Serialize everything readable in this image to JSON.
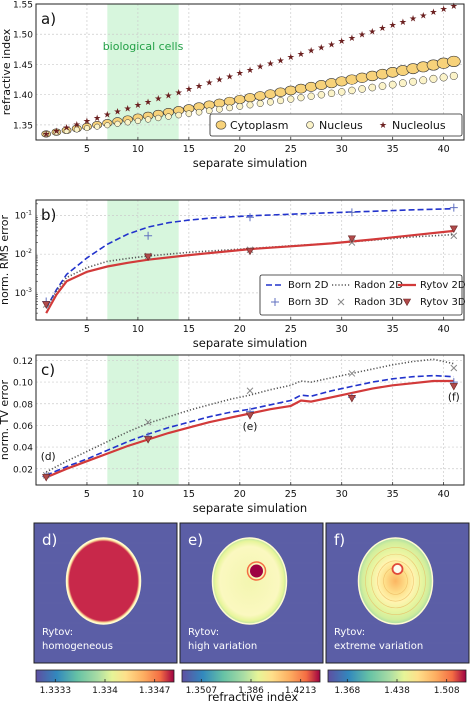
{
  "colors": {
    "born": "#2233cc",
    "radon": "#555555",
    "rytov": "#d23a3a",
    "rytov3d": "#b04a4a",
    "highlight": "#c9f3d2",
    "cytoplasm": "#f7d27a",
    "nucleus": "#fbf3c8",
    "nucleolus": "#6b2020",
    "map_bg": "#5b5ea6"
  },
  "chart_data": [
    {
      "id": "a",
      "type": "scatter",
      "panel_label": "a)",
      "xlabel": "separate simulation",
      "ylabel": "refractive index",
      "xlim": [
        0,
        42
      ],
      "ylim": [
        1.325,
        1.55
      ],
      "xticks": [
        5,
        10,
        15,
        20,
        25,
        30,
        35,
        40
      ],
      "yticks": [
        1.35,
        1.4,
        1.45,
        1.5,
        1.55
      ],
      "ytick_labels": [
        "1.35",
        "1.40",
        "1.45",
        "1.50",
        "1.55"
      ],
      "grid": true,
      "legend_position": "bottom-right",
      "highlight_x": [
        7,
        14
      ],
      "highlight_label": "biological cells",
      "x": [
        1,
        2,
        3,
        4,
        5,
        6,
        7,
        8,
        9,
        10,
        11,
        12,
        13,
        14,
        15,
        16,
        17,
        18,
        19,
        20,
        21,
        22,
        23,
        24,
        25,
        26,
        27,
        28,
        29,
        30,
        31,
        32,
        33,
        34,
        35,
        36,
        37,
        38,
        39,
        40,
        41
      ],
      "series": [
        {
          "name": "Cytoplasm",
          "start": 1.335,
          "step": 0.003
        },
        {
          "name": "Nucleus",
          "start": 1.335,
          "step": 0.0024
        },
        {
          "name": "Nucleolus",
          "start": 1.335,
          "step": 0.0053
        }
      ]
    },
    {
      "id": "b",
      "type": "line",
      "panel_label": "b)",
      "xlabel": "separate simulation",
      "ylabel": "norm. RMS error",
      "log_y": true,
      "xlim": [
        0,
        42
      ],
      "ylim_exp": [
        -3.7,
        -0.6
      ],
      "xticks": [
        5,
        10,
        15,
        20,
        25,
        30,
        35,
        40
      ],
      "yticks_exp": [
        -3,
        -2,
        -1
      ],
      "grid": true,
      "legend_position": "bottom-right",
      "series": [
        {
          "name": "Born 2D",
          "style": "dashed",
          "x": [
            1,
            2,
            3,
            5,
            7,
            9,
            11,
            13,
            15,
            17,
            19,
            21,
            25,
            29,
            33,
            37,
            41
          ],
          "y": [
            0.0004,
            0.0012,
            0.003,
            0.008,
            0.018,
            0.033,
            0.05,
            0.065,
            0.076,
            0.085,
            0.092,
            0.098,
            0.108,
            0.118,
            0.128,
            0.14,
            0.15
          ]
        },
        {
          "name": "Radon 2D",
          "style": "dotted",
          "x": [
            1,
            2,
            3,
            5,
            7,
            9,
            11,
            15,
            19,
            21,
            25,
            29,
            33,
            37,
            41
          ],
          "y": [
            0.0004,
            0.0011,
            0.0025,
            0.0045,
            0.0065,
            0.0078,
            0.009,
            0.0112,
            0.013,
            0.014,
            0.0165,
            0.019,
            0.023,
            0.028,
            0.032
          ]
        },
        {
          "name": "Rytov 2D",
          "style": "solid",
          "x": [
            1,
            2,
            3,
            5,
            7,
            9,
            11,
            15,
            19,
            21,
            25,
            29,
            33,
            37,
            41
          ],
          "y": [
            0.0003,
            0.0009,
            0.002,
            0.0035,
            0.0048,
            0.006,
            0.0072,
            0.0095,
            0.012,
            0.0135,
            0.016,
            0.019,
            0.024,
            0.031,
            0.04
          ]
        },
        {
          "name": "Born 3D",
          "marker": "+",
          "x": [
            1,
            11,
            21,
            31,
            41
          ],
          "y": [
            0.0006,
            0.03,
            0.09,
            0.12,
            0.16
          ]
        },
        {
          "name": "Radon 3D",
          "marker": "x",
          "x": [
            1,
            11,
            21,
            31,
            41
          ],
          "y": [
            0.0005,
            0.009,
            0.013,
            0.02,
            0.03
          ]
        },
        {
          "name": "Rytov 3D",
          "marker": "triangle",
          "x": [
            1,
            11,
            21,
            31,
            41
          ],
          "y": [
            0.0005,
            0.0085,
            0.012,
            0.025,
            0.045
          ]
        }
      ]
    },
    {
      "id": "c",
      "type": "line",
      "panel_label": "c)",
      "xlabel": "separate simulation",
      "ylabel": "norm. TV error",
      "xlim": [
        0,
        42
      ],
      "ylim": [
        0.005,
        0.125
      ],
      "xticks": [
        5,
        10,
        15,
        20,
        25,
        30,
        35,
        40
      ],
      "yticks": [
        0.02,
        0.04,
        0.06,
        0.08,
        0.1,
        0.12
      ],
      "ytick_labels": [
        "0.02",
        "0.04",
        "0.06",
        "0.08",
        "0.10",
        "0.12"
      ],
      "grid": true,
      "series": [
        {
          "name": "Born 2D",
          "style": "dashed",
          "x": [
            1,
            3,
            5,
            7,
            9,
            11,
            13,
            15,
            17,
            19,
            21,
            23,
            25,
            26,
            27,
            29,
            31,
            33,
            35,
            37,
            39,
            41
          ],
          "y": [
            0.014,
            0.022,
            0.029,
            0.037,
            0.045,
            0.052,
            0.058,
            0.063,
            0.068,
            0.072,
            0.075,
            0.079,
            0.083,
            0.088,
            0.087,
            0.092,
            0.096,
            0.1,
            0.103,
            0.105,
            0.106,
            0.105
          ]
        },
        {
          "name": "Radon 2D",
          "style": "dotted",
          "x": [
            1,
            3,
            5,
            7,
            9,
            11,
            13,
            15,
            17,
            19,
            21,
            23,
            25,
            26,
            27,
            29,
            31,
            33,
            35,
            37,
            39,
            41
          ],
          "y": [
            0.017,
            0.027,
            0.036,
            0.045,
            0.054,
            0.062,
            0.068,
            0.074,
            0.079,
            0.084,
            0.088,
            0.093,
            0.097,
            0.101,
            0.1,
            0.104,
            0.108,
            0.112,
            0.116,
            0.119,
            0.121,
            0.117
          ]
        },
        {
          "name": "Rytov 2D",
          "style": "solid",
          "x": [
            1,
            3,
            5,
            7,
            9,
            11,
            13,
            15,
            17,
            19,
            21,
            23,
            25,
            26,
            27,
            29,
            31,
            33,
            35,
            37,
            39,
            41
          ],
          "y": [
            0.012,
            0.02,
            0.027,
            0.034,
            0.041,
            0.047,
            0.053,
            0.058,
            0.063,
            0.067,
            0.071,
            0.075,
            0.078,
            0.083,
            0.082,
            0.086,
            0.09,
            0.094,
            0.097,
            0.099,
            0.101,
            0.101
          ]
        },
        {
          "name": "Born 3D",
          "marker": "+",
          "x": [
            1,
            11,
            21,
            31,
            41
          ],
          "y": [
            0.013,
            0.05,
            0.073,
            0.086,
            0.1
          ]
        },
        {
          "name": "Radon 3D",
          "marker": "x",
          "x": [
            1,
            11,
            21,
            31,
            41
          ],
          "y": [
            0.014,
            0.063,
            0.092,
            0.108,
            0.113
          ]
        },
        {
          "name": "Rytov 3D",
          "marker": "triangle",
          "x": [
            1,
            11,
            21,
            31,
            41
          ],
          "y": [
            0.012,
            0.047,
            0.069,
            0.085,
            0.096
          ]
        }
      ],
      "annotations": [
        {
          "text": "(d)",
          "x": 1
        },
        {
          "text": "(e)",
          "x": 21
        },
        {
          "text": "(f)",
          "x": 41
        }
      ]
    }
  ],
  "images": [
    {
      "label": "d)",
      "caption": [
        "Rytov:",
        "homogeneous"
      ],
      "ticks": [
        "1.3333",
        "1.334",
        "1.3347"
      ],
      "fill": "homogeneous"
    },
    {
      "label": "e)",
      "caption": [
        "Rytov:",
        "high variation"
      ],
      "ticks": [
        "1.3507",
        "1.386",
        "1.4213"
      ],
      "fill": "high"
    },
    {
      "label": "f)",
      "caption": [
        "Rytov:",
        "extreme variation"
      ],
      "ticks": [
        "1.368",
        "1.438",
        "1.508"
      ],
      "fill": "extreme"
    }
  ],
  "colorbar_label": "refractive index"
}
